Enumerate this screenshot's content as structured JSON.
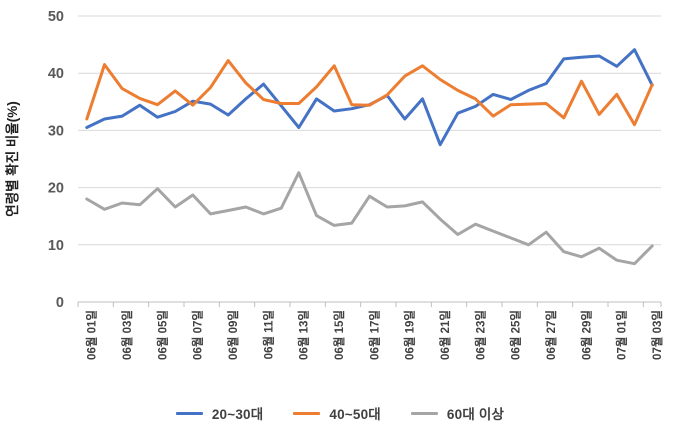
{
  "chart_data": {
    "type": "line",
    "title": "",
    "xlabel": "",
    "ylabel": "연령별 확진 비율(%)",
    "ylim": [
      0,
      50
    ],
    "y_ticks": [
      0,
      10,
      20,
      30,
      40,
      50
    ],
    "grid": true,
    "legend_position": "bottom",
    "x_label_every": 2,
    "categories": [
      "06월 01일",
      "06월 02일",
      "06월 03일",
      "06월 04일",
      "06월 05일",
      "06월 06일",
      "06월 07일",
      "06월 08일",
      "06월 09일",
      "06월 10일",
      "06월 11일",
      "06월 12일",
      "06월 13일",
      "06월 14일",
      "06월 15일",
      "06월 16일",
      "06월 17일",
      "06월 18일",
      "06월 19일",
      "06월 20일",
      "06월 21일",
      "06월 22일",
      "06월 23일",
      "06월 24일",
      "06월 25일",
      "06월 26일",
      "06월 27일",
      "06월 28일",
      "06월 29일",
      "06월 30일",
      "07월 01일",
      "07월 02일",
      "07월 03일"
    ],
    "x_tick_labels": [
      "06월 01일",
      "06월 03일",
      "06월 05일",
      "06월 07일",
      "06월 09일",
      "06월 11일",
      "06월 13일",
      "06월 15일",
      "06월 17일",
      "06월 19일",
      "06월 21일",
      "06월 23일",
      "06월 25일",
      "06월 27일",
      "06월 29일",
      "07월 01일",
      "07월 03일"
    ],
    "series": [
      {
        "name": "20~30대",
        "color": "#4472C4",
        "values": [
          30.5,
          32.0,
          32.5,
          34.4,
          32.3,
          33.3,
          35.1,
          34.6,
          32.7,
          35.5,
          38.1,
          34.3,
          30.5,
          35.5,
          33.4,
          33.8,
          34.5,
          36.1,
          32.0,
          35.5,
          27.5,
          33.0,
          34.2,
          36.3,
          35.4,
          37.0,
          38.2,
          42.5,
          42.8,
          43.0,
          41.2,
          44.1,
          37.9
        ]
      },
      {
        "name": "40~50대",
        "color": "#ED7D31",
        "values": [
          32.0,
          41.5,
          37.3,
          35.6,
          34.5,
          36.9,
          34.4,
          37.5,
          42.2,
          38.3,
          35.4,
          34.7,
          34.7,
          37.6,
          41.3,
          34.5,
          34.4,
          36.2,
          39.5,
          41.3,
          38.9,
          37.0,
          35.5,
          32.5,
          34.5,
          34.6,
          34.7,
          32.2,
          38.6,
          32.8,
          36.3,
          31.0,
          38.0
        ]
      },
      {
        "name": "60대 이상",
        "color": "#A5A5A5",
        "values": [
          18.0,
          16.2,
          17.3,
          17.0,
          19.8,
          16.6,
          18.7,
          15.4,
          16.0,
          16.6,
          15.4,
          16.4,
          22.6,
          15.1,
          13.4,
          13.8,
          18.5,
          16.6,
          16.8,
          17.5,
          14.5,
          11.8,
          13.6,
          12.4,
          11.2,
          10.0,
          12.2,
          8.8,
          7.9,
          9.4,
          7.3,
          6.7,
          9.8
        ]
      }
    ],
    "style": {
      "gridline_color": "#D9D9D9",
      "axis_line_color": "#BFBFBF",
      "tick_label_color": "#595959",
      "x_label_color": "#404040",
      "axis_title_color": "#1f1f1f"
    }
  }
}
